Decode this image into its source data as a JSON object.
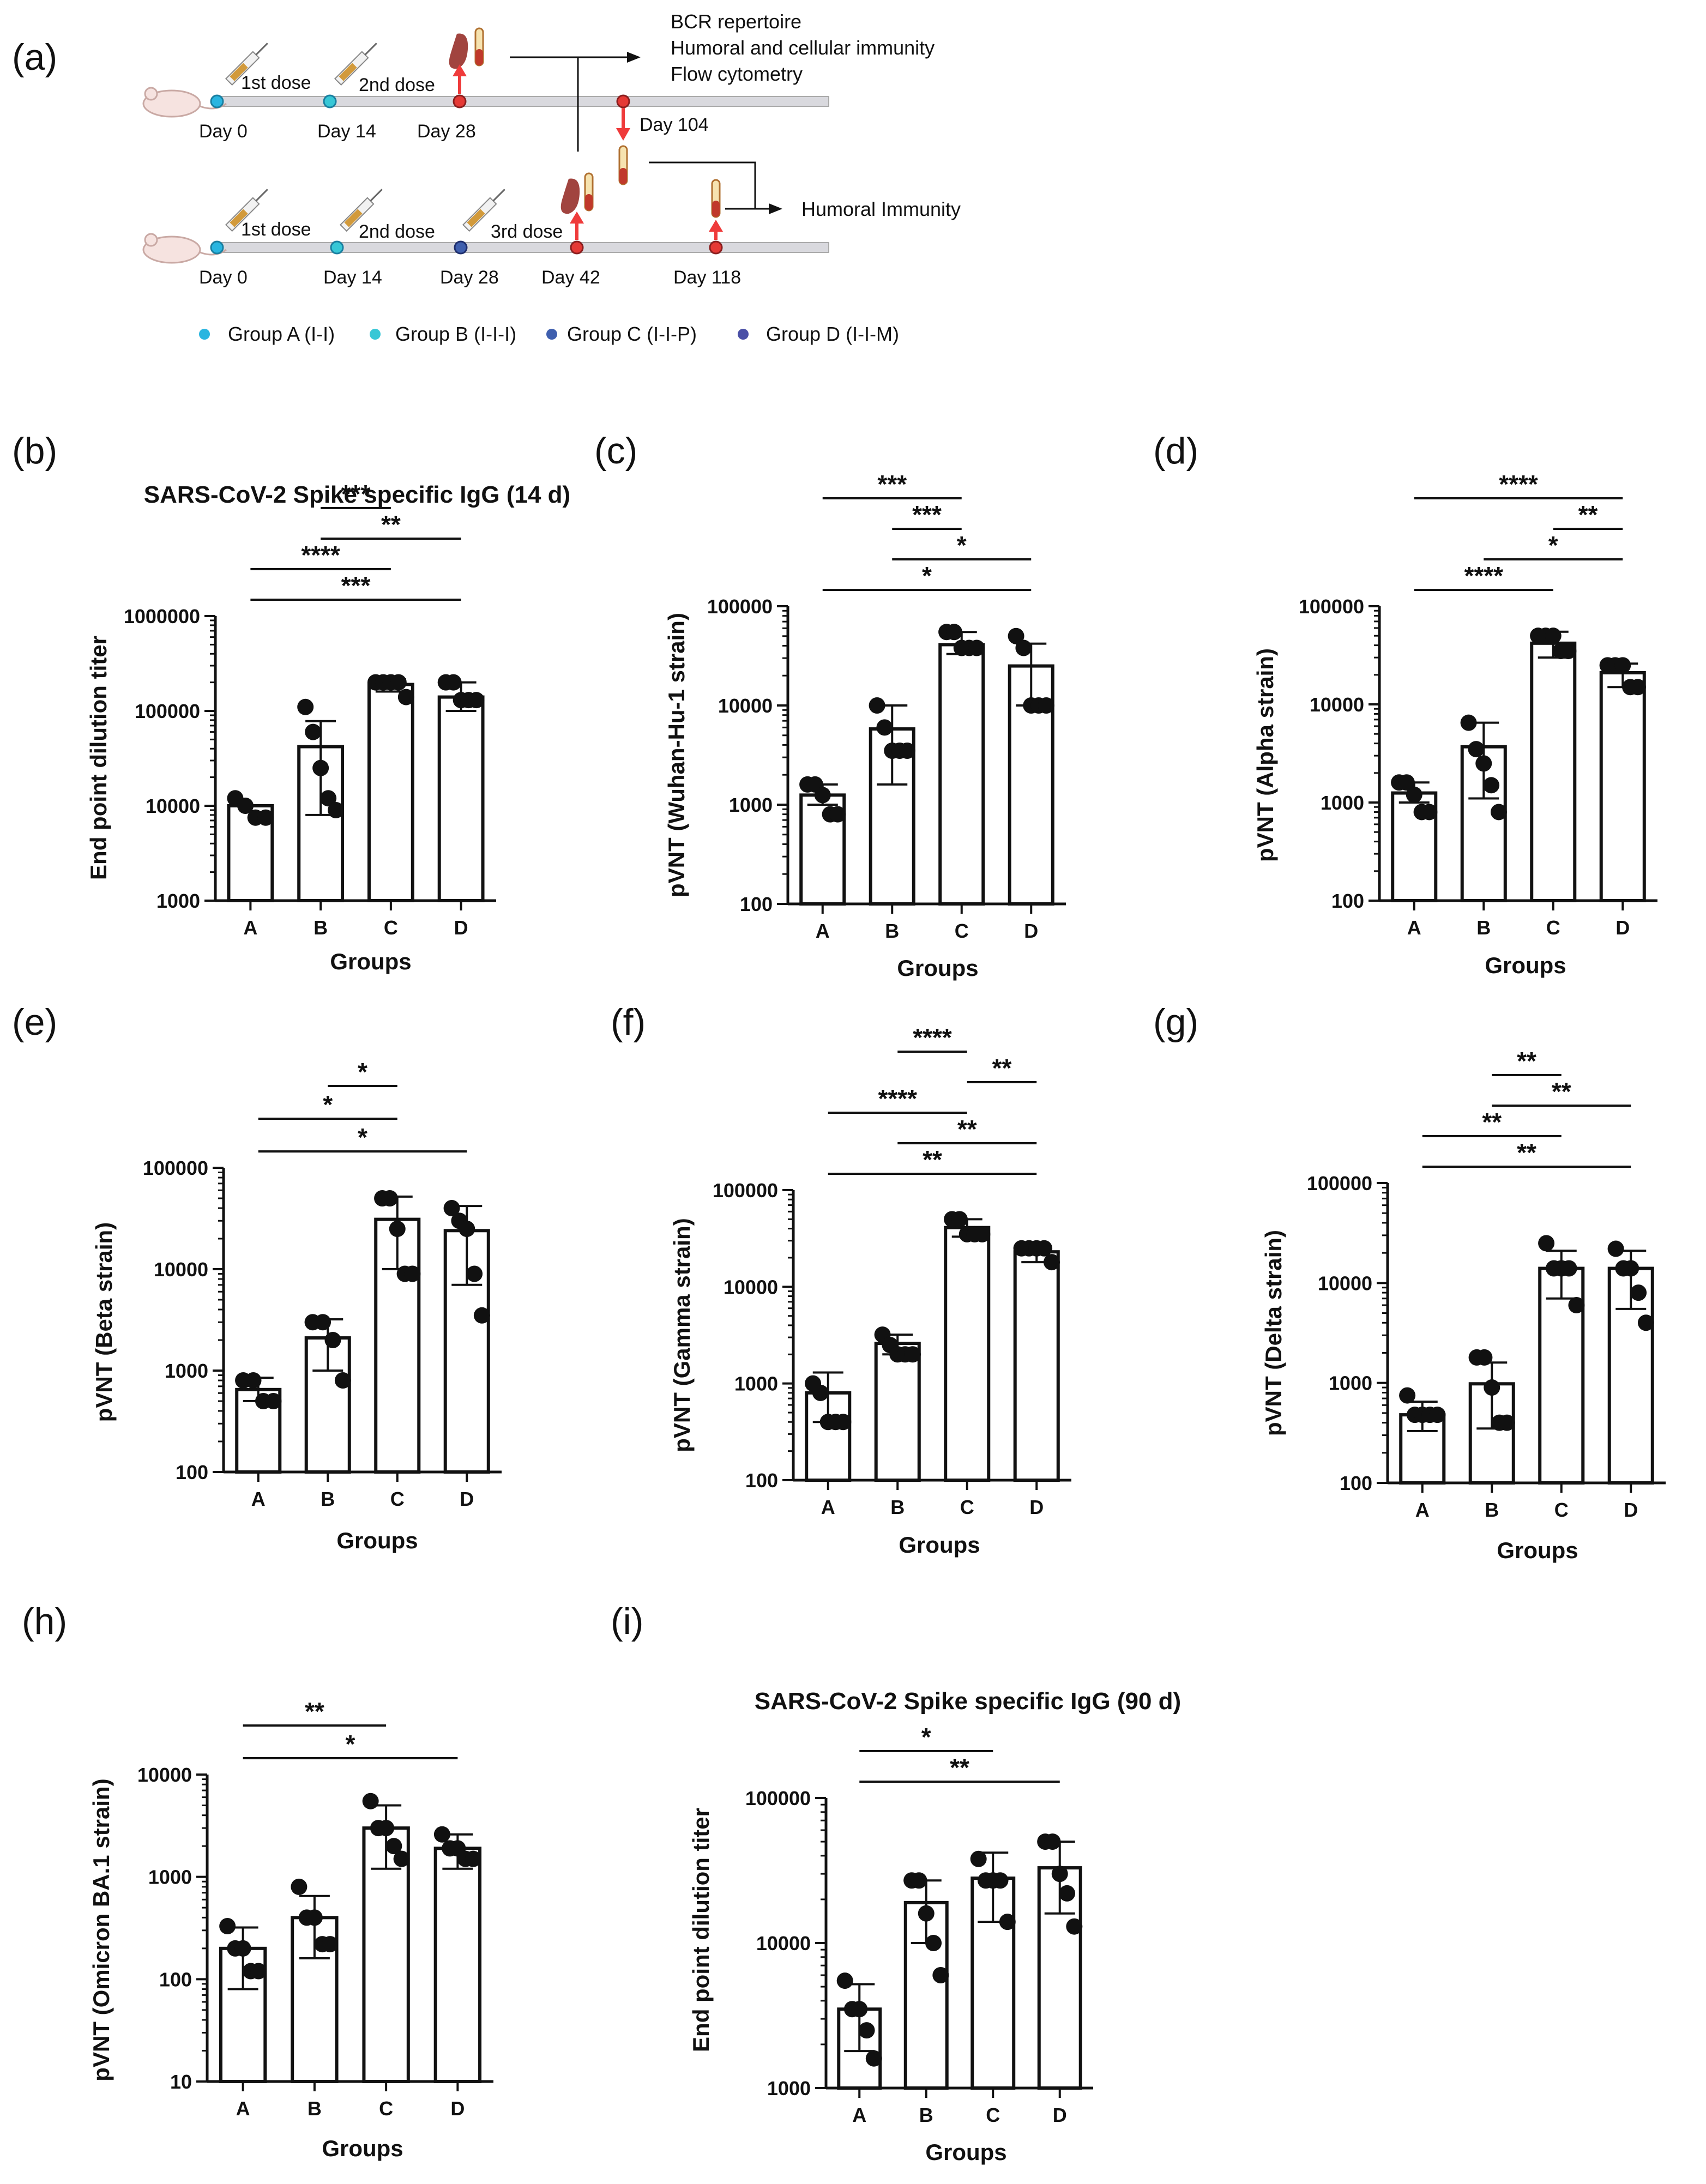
{
  "scheme": {
    "label": "(a)",
    "top_row": {
      "doses": [
        "1st dose",
        "2nd dose"
      ],
      "days": [
        "Day 0",
        "Day 14",
        "Day 28"
      ],
      "late_day": "Day 104",
      "outputs": [
        "BCR repertoire",
        "Humoral and cellular immunity",
        "Flow cytometry"
      ]
    },
    "bottom_row": {
      "doses": [
        "1st dose",
        "2nd dose",
        "3rd dose"
      ],
      "days": [
        "Day 0",
        "Day 14",
        "Day 28",
        "Day 42",
        "Day 118"
      ],
      "output": "Humoral Immunity"
    },
    "legend": [
      {
        "name": "Group A",
        "code": "(I-I)",
        "color": "#29b5e0"
      },
      {
        "name": "Group B",
        "code": "(I-I-I)",
        "color": "#37c7d6"
      },
      {
        "name": "Group C",
        "code": "(I-I-P)",
        "color": "#3f5fae"
      },
      {
        "name": "Group D",
        "code": "(I-I-M)",
        "color": "#4a4fa6"
      }
    ],
    "colors": {
      "timeline": "#d9d9de",
      "arrow_red": "#ef3b3b",
      "dot_red": "#e53935",
      "organ": "#a1443f",
      "syringe": "#d29a3b"
    }
  },
  "chart_data": [
    {
      "panel": "(b)",
      "type": "bar",
      "title": "SARS-CoV-2 Spike specific IgG (14 d)",
      "xlabel": "Groups",
      "ylabel": "End point dilution titer",
      "yscale": "log",
      "ylim": [
        1000,
        1000000
      ],
      "yticks": [
        "1000",
        "10000",
        "100000",
        "1000000"
      ],
      "categories": [
        "A",
        "B",
        "C",
        "D"
      ],
      "values": [
        10000,
        42000,
        190000,
        140000
      ],
      "sd": [
        [
          10000,
          10000
        ],
        [
          8000,
          78000
        ],
        [
          160000,
          215000
        ],
        [
          100000,
          200000
        ]
      ],
      "points": [
        [
          12000,
          10000,
          7500,
          7500
        ],
        [
          110000,
          60000,
          25000,
          12000,
          9000
        ],
        [
          200000,
          200000,
          200000,
          200000,
          140000
        ],
        [
          200000,
          200000,
          130000,
          130000,
          130000
        ]
      ],
      "significance": [
        {
          "from": "A",
          "to": "D",
          "label": "***"
        },
        {
          "from": "A",
          "to": "C",
          "label": "****"
        },
        {
          "from": "B",
          "to": "D",
          "label": "**"
        },
        {
          "from": "B",
          "to": "C",
          "label": "***"
        }
      ]
    },
    {
      "panel": "(c)",
      "type": "bar",
      "title": "",
      "xlabel": "Groups",
      "ylabel": "pVNT (Wuhan-Hu-1 strain)",
      "yscale": "log",
      "ylim": [
        100,
        100000
      ],
      "yticks": [
        "100",
        "1000",
        "10000",
        "100000"
      ],
      "categories": [
        "A",
        "B",
        "C",
        "D"
      ],
      "values": [
        1250,
        5800,
        41000,
        25000
      ],
      "sd": [
        [
          1000,
          1600
        ],
        [
          1600,
          10000
        ],
        [
          33000,
          55000
        ],
        [
          10000,
          42000
        ]
      ],
      "points": [
        [
          1600,
          1600,
          1250,
          800,
          800
        ],
        [
          10000,
          6000,
          3500,
          3500,
          3500
        ],
        [
          55000,
          55000,
          38000,
          38000,
          38000
        ],
        [
          50000,
          38000,
          10000,
          10000,
          10000
        ]
      ],
      "significance": [
        {
          "from": "A",
          "to": "D",
          "label": "*"
        },
        {
          "from": "B",
          "to": "D",
          "label": "*"
        },
        {
          "from": "B",
          "to": "C",
          "label": "***"
        },
        {
          "from": "A",
          "to": "C",
          "label": "***"
        }
      ]
    },
    {
      "panel": "(d)",
      "type": "bar",
      "title": "",
      "xlabel": "Groups",
      "ylabel": "pVNT (Alpha strain)",
      "yscale": "log",
      "ylim": [
        100,
        100000
      ],
      "yticks": [
        "100",
        "1000",
        "10000",
        "100000"
      ],
      "categories": [
        "A",
        "B",
        "C",
        "D"
      ],
      "values": [
        1250,
        3700,
        42000,
        21000
      ],
      "sd": [
        [
          1000,
          1600
        ],
        [
          1100,
          6500
        ],
        [
          30000,
          55000
        ],
        [
          15000,
          26000
        ]
      ],
      "points": [
        [
          1600,
          1600,
          1200,
          800,
          800
        ],
        [
          6500,
          3500,
          2500,
          1500,
          800
        ],
        [
          50000,
          50000,
          50000,
          35000,
          35000
        ],
        [
          25000,
          25000,
          25000,
          15000,
          15000
        ]
      ],
      "significance": [
        {
          "from": "A",
          "to": "C",
          "label": "****"
        },
        {
          "from": "B",
          "to": "D",
          "label": "*"
        },
        {
          "from": "C",
          "to": "D",
          "label": "**"
        },
        {
          "from": "A",
          "to": "D",
          "label": "****"
        }
      ]
    },
    {
      "panel": "(e)",
      "type": "bar",
      "title": "",
      "xlabel": "Groups",
      "ylabel": "pVNT (Beta strain)",
      "yscale": "log",
      "ylim": [
        100,
        100000
      ],
      "yticks": [
        "100",
        "1000",
        "10000",
        "100000"
      ],
      "categories": [
        "A",
        "B",
        "C",
        "D"
      ],
      "values": [
        650,
        2100,
        31000,
        24000
      ],
      "sd": [
        [
          500,
          850
        ],
        [
          1000,
          3200
        ],
        [
          10000,
          52000
        ],
        [
          7000,
          42000
        ]
      ],
      "points": [
        [
          800,
          800,
          500,
          500
        ],
        [
          3000,
          3000,
          2000,
          800
        ],
        [
          50000,
          50000,
          25000,
          9000,
          9000
        ],
        [
          40000,
          30000,
          25000,
          9000,
          3500
        ]
      ],
      "significance": [
        {
          "from": "A",
          "to": "D",
          "label": "*"
        },
        {
          "from": "A",
          "to": "C",
          "label": "*"
        },
        {
          "from": "B",
          "to": "C",
          "label": "*"
        }
      ]
    },
    {
      "panel": "(f)",
      "type": "bar",
      "title": "",
      "xlabel": "Groups",
      "ylabel": "pVNT (Gamma strain)",
      "yscale": "log",
      "ylim": [
        100,
        100000
      ],
      "yticks": [
        "100",
        "1000",
        "10000",
        "100000"
      ],
      "categories": [
        "A",
        "B",
        "C",
        "D"
      ],
      "values": [
        800,
        2600,
        41000,
        23000
      ],
      "sd": [
        [
          400,
          1300
        ],
        [
          2000,
          3200
        ],
        [
          33000,
          50000
        ],
        [
          18000,
          25000
        ]
      ],
      "points": [
        [
          1000,
          800,
          400,
          400,
          400
        ],
        [
          3200,
          2500,
          2000,
          2000,
          2000
        ],
        [
          50000,
          50000,
          35000,
          35000,
          35000
        ],
        [
          25000,
          25000,
          25000,
          25000,
          18000
        ]
      ],
      "significance": [
        {
          "from": "A",
          "to": "D",
          "label": "**"
        },
        {
          "from": "B",
          "to": "D",
          "label": "**"
        },
        {
          "from": "A",
          "to": "C",
          "label": "****"
        },
        {
          "from": "C",
          "to": "D",
          "label": "**"
        },
        {
          "from": "B",
          "to": "C",
          "label": "****"
        }
      ]
    },
    {
      "panel": "(g)",
      "type": "bar",
      "title": "",
      "xlabel": "Groups",
      "ylabel": "pVNT (Delta strain)",
      "yscale": "log",
      "ylim": [
        100,
        100000
      ],
      "yticks": [
        "100",
        "1000",
        "10000",
        "100000"
      ],
      "categories": [
        "A",
        "B",
        "C",
        "D"
      ],
      "values": [
        480,
        980,
        14000,
        14000
      ],
      "sd": [
        [
          330,
          650
        ],
        [
          350,
          1600
        ],
        [
          7000,
          21000
        ],
        [
          5500,
          21000
        ]
      ],
      "points": [
        [
          750,
          480,
          480,
          480,
          480
        ],
        [
          1800,
          1800,
          900,
          400,
          400
        ],
        [
          25000,
          14000,
          14000,
          14000,
          6000
        ],
        [
          22000,
          14000,
          14000,
          8000,
          4000
        ]
      ],
      "significance": [
        {
          "from": "A",
          "to": "D",
          "label": "**"
        },
        {
          "from": "A",
          "to": "C",
          "label": "**"
        },
        {
          "from": "B",
          "to": "D",
          "label": "**"
        },
        {
          "from": "B",
          "to": "C",
          "label": "**"
        }
      ]
    },
    {
      "panel": "(h)",
      "type": "bar",
      "title": "",
      "xlabel": "Groups",
      "ylabel": "pVNT (Omicron BA.1 strain)",
      "yscale": "log",
      "ylim": [
        10,
        10000
      ],
      "yticks": [
        "10",
        "100",
        "1000",
        "10000"
      ],
      "categories": [
        "A",
        "B",
        "C",
        "D"
      ],
      "values": [
        200,
        400,
        3000,
        1900
      ],
      "sd": [
        [
          80,
          320
        ],
        [
          160,
          650
        ],
        [
          1200,
          5000
        ],
        [
          1200,
          2600
        ]
      ],
      "points": [
        [
          330,
          200,
          200,
          120,
          120
        ],
        [
          800,
          400,
          400,
          220,
          220
        ],
        [
          5500,
          3000,
          3000,
          2000,
          1500
        ],
        [
          2600,
          1900,
          1900,
          1500,
          1500
        ]
      ],
      "significance": [
        {
          "from": "A",
          "to": "D",
          "label": "*"
        },
        {
          "from": "A",
          "to": "C",
          "label": "**"
        }
      ]
    },
    {
      "panel": "(i)",
      "type": "bar",
      "title": "SARS-CoV-2 Spike specific IgG (90 d)",
      "xlabel": "Groups",
      "ylabel": "End point dilution titer",
      "yscale": "log",
      "ylim": [
        1000,
        100000
      ],
      "yticks": [
        "1000",
        "10000",
        "100000"
      ],
      "categories": [
        "A",
        "B",
        "C",
        "D"
      ],
      "values": [
        3500,
        19000,
        28000,
        33000
      ],
      "sd": [
        [
          1800,
          5200
        ],
        [
          10000,
          27000
        ],
        [
          14000,
          42000
        ],
        [
          16000,
          50000
        ]
      ],
      "points": [
        [
          5500,
          3500,
          3500,
          2500,
          1600
        ],
        [
          27000,
          27000,
          16000,
          10000,
          6000
        ],
        [
          38000,
          27000,
          27000,
          27000,
          14000
        ],
        [
          50000,
          50000,
          30000,
          22000,
          13000
        ]
      ],
      "significance": [
        {
          "from": "A",
          "to": "D",
          "label": "**"
        },
        {
          "from": "A",
          "to": "C",
          "label": "*"
        }
      ]
    }
  ]
}
